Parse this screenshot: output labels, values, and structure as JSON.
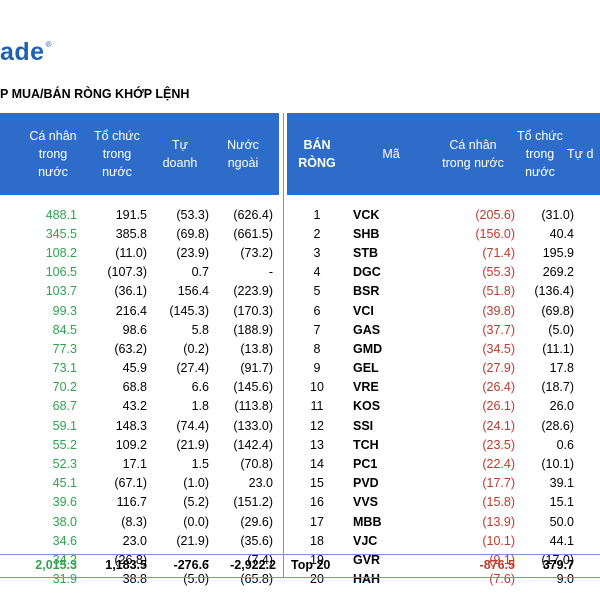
{
  "logo": {
    "text": "ade",
    "mark": "®"
  },
  "subtitle": "P MUA/BÁN RÒNG KHỚP LỆNH",
  "left_headers": [
    "Cá nhân\ntrong\nnước",
    "Tổ chức\ntrong\nnước",
    "Tự\ndoanh",
    "Nước\nngoài"
  ],
  "right_headers": [
    "BÁN\nRÒNG",
    "Mã",
    "Cá nhân\ntrong nước",
    "Tổ chức\ntrong\nnước",
    "Tự d"
  ],
  "left_rows": [
    [
      "488.1",
      "191.5",
      "(53.3)",
      "(626.4)"
    ],
    [
      "345.5",
      "385.8",
      "(69.8)",
      "(661.5)"
    ],
    [
      "108.2",
      "(11.0)",
      "(23.9)",
      "(73.2)"
    ],
    [
      "106.5",
      "(107.3)",
      "0.7",
      "-"
    ],
    [
      "103.7",
      "(36.1)",
      "156.4",
      "(223.9)"
    ],
    [
      "99.3",
      "216.4",
      "(145.3)",
      "(170.3)"
    ],
    [
      "84.5",
      "98.6",
      "5.8",
      "(188.9)"
    ],
    [
      "77.3",
      "(63.2)",
      "(0.2)",
      "(13.8)"
    ],
    [
      "73.1",
      "45.9",
      "(27.4)",
      "(91.7)"
    ],
    [
      "70.2",
      "68.8",
      "6.6",
      "(145.6)"
    ],
    [
      "68.7",
      "43.2",
      "1.8",
      "(113.8)"
    ],
    [
      "59.1",
      "148.3",
      "(74.4)",
      "(133.0)"
    ],
    [
      "55.2",
      "109.2",
      "(21.9)",
      "(142.4)"
    ],
    [
      "52.3",
      "17.1",
      "1.5",
      "(70.8)"
    ],
    [
      "45.1",
      "(67.1)",
      "(1.0)",
      "23.0"
    ],
    [
      "39.6",
      "116.7",
      "(5.2)",
      "(151.2)"
    ],
    [
      "38.0",
      "(8.3)",
      "(0.0)",
      "(29.6)"
    ],
    [
      "34.6",
      "23.0",
      "(21.9)",
      "(35.6)"
    ],
    [
      "34.2",
      "(26.8)",
      "-",
      "(7.4)"
    ],
    [
      "31.9",
      "38.8",
      "(5.0)",
      "(65.8)"
    ]
  ],
  "right_rows": [
    [
      "1",
      "VCK",
      "(205.6)",
      "(31.0)"
    ],
    [
      "2",
      "SHB",
      "(156.0)",
      "40.4"
    ],
    [
      "3",
      "STB",
      "(71.4)",
      "195.9"
    ],
    [
      "4",
      "DGC",
      "(55.3)",
      "269.2"
    ],
    [
      "5",
      "BSR",
      "(51.8)",
      "(136.4)"
    ],
    [
      "6",
      "VCI",
      "(39.8)",
      "(69.8)"
    ],
    [
      "7",
      "GAS",
      "(37.7)",
      "(5.0)"
    ],
    [
      "8",
      "GMD",
      "(34.5)",
      "(11.1)"
    ],
    [
      "9",
      "GEL",
      "(27.9)",
      "17.8"
    ],
    [
      "10",
      "VRE",
      "(26.4)",
      "(18.7)"
    ],
    [
      "11",
      "KOS",
      "(26.1)",
      "26.0"
    ],
    [
      "12",
      "SSI",
      "(24.1)",
      "(28.6)"
    ],
    [
      "13",
      "TCH",
      "(23.5)",
      "0.6"
    ],
    [
      "14",
      "PC1",
      "(22.4)",
      "(10.1)"
    ],
    [
      "15",
      "PVD",
      "(17.7)",
      "39.1"
    ],
    [
      "16",
      "VVS",
      "(15.8)",
      "15.1"
    ],
    [
      "17",
      "MBB",
      "(13.9)",
      "50.0"
    ],
    [
      "18",
      "VJC",
      "(10.1)",
      "44.1"
    ],
    [
      "19",
      "GVR",
      "(9.1)",
      "(17.0)"
    ],
    [
      "20",
      "HAH",
      "(7.6)",
      "9.0"
    ]
  ],
  "left_total": [
    "2,015.3",
    "1,183.5",
    "-276.6",
    "-2,922.2"
  ],
  "right_total": {
    "label": "Top 20",
    "values": [
      "-876.5",
      "379.7"
    ]
  }
}
